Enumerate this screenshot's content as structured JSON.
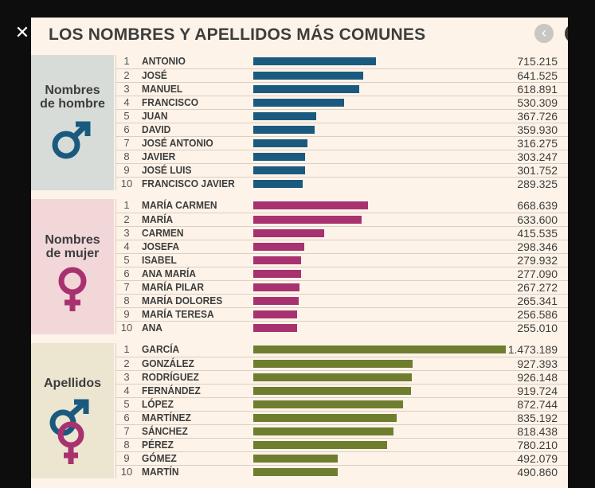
{
  "title": "LOS NOMBRES Y APELLIDOS MÁS COMUNES",
  "colors": {
    "men": "#1a5a7f",
    "women": "#a83270",
    "surnames": "#6f7e2e",
    "men_bg": "#d8dcd9",
    "women_bg": "#f2d7d9",
    "surnames_bg": "#ece6d0"
  },
  "icons": {
    "close": "close-icon",
    "prev": "chevron-left-icon",
    "next": "chevron-right-icon"
  },
  "sections": [
    {
      "key": "men",
      "label": "Nombres de hombre",
      "label_lines": [
        "Nombres",
        "de hombre"
      ],
      "icon": "male-symbol-icon",
      "rows": [
        {
          "rank": "1",
          "name": "ANTONIO",
          "value": "715.215",
          "num": 715215
        },
        {
          "rank": "2",
          "name": "JOSÉ",
          "value": "641.525",
          "num": 641525
        },
        {
          "rank": "3",
          "name": "MANUEL",
          "value": "618.891",
          "num": 618891
        },
        {
          "rank": "4",
          "name": "FRANCISCO",
          "value": "530.309",
          "num": 530309
        },
        {
          "rank": "5",
          "name": "JUAN",
          "value": "367.726",
          "num": 367726
        },
        {
          "rank": "6",
          "name": "DAVID",
          "value": "359.930",
          "num": 359930
        },
        {
          "rank": "7",
          "name": "JOSÉ ANTONIO",
          "value": "316.275",
          "num": 316275
        },
        {
          "rank": "8",
          "name": "JAVIER",
          "value": "303.247",
          "num": 303247
        },
        {
          "rank": "9",
          "name": "JOSÉ LUIS",
          "value": "301.752",
          "num": 301752
        },
        {
          "rank": "10",
          "name": "FRANCISCO JAVIER",
          "value": "289.325",
          "num": 289325
        }
      ]
    },
    {
      "key": "women",
      "label": "Nombres de mujer",
      "label_lines": [
        "Nombres",
        "de mujer"
      ],
      "icon": "female-symbol-icon",
      "rows": [
        {
          "rank": "1",
          "name": "MARÍA CARMEN",
          "value": "668.639",
          "num": 668639
        },
        {
          "rank": "2",
          "name": "MARÍA",
          "value": "633.600",
          "num": 633600
        },
        {
          "rank": "3",
          "name": "CARMEN",
          "value": "415.535",
          "num": 415535
        },
        {
          "rank": "4",
          "name": "JOSEFA",
          "value": "298.346",
          "num": 298346
        },
        {
          "rank": "5",
          "name": "ISABEL",
          "value": "279.932",
          "num": 279932
        },
        {
          "rank": "6",
          "name": "ANA MARÍA",
          "value": "277.090",
          "num": 277090
        },
        {
          "rank": "7",
          "name": "MARÍA PILAR",
          "value": "267.272",
          "num": 267272
        },
        {
          "rank": "8",
          "name": "MARÍA DOLORES",
          "value": "265.341",
          "num": 265341
        },
        {
          "rank": "9",
          "name": "MARÍA TERESA",
          "value": "256.586",
          "num": 256586
        },
        {
          "rank": "10",
          "name": "ANA",
          "value": "255.010",
          "num": 255010
        }
      ]
    },
    {
      "key": "surnames",
      "label": "Apellidos",
      "label_lines": [
        "Apellidos"
      ],
      "icon": "male-female-symbol-icon",
      "rows": [
        {
          "rank": "1",
          "name": "GARCÍA",
          "value": "1.473.189",
          "num": 1473189
        },
        {
          "rank": "2",
          "name": "GONZÁLEZ",
          "value": "927.393",
          "num": 927393
        },
        {
          "rank": "3",
          "name": "RODRÍGUEZ",
          "value": "926.148",
          "num": 926148
        },
        {
          "rank": "4",
          "name": "FERNÁNDEZ",
          "value": "919.724",
          "num": 919724
        },
        {
          "rank": "5",
          "name": "LÓPEZ",
          "value": "872.744",
          "num": 872744
        },
        {
          "rank": "6",
          "name": "MARTÍNEZ",
          "value": "835.192",
          "num": 835192
        },
        {
          "rank": "7",
          "name": "SÁNCHEZ",
          "value": "818.438",
          "num": 818438
        },
        {
          "rank": "8",
          "name": "PÉREZ",
          "value": "780.210",
          "num": 780210
        },
        {
          "rank": "9",
          "name": "GÓMEZ",
          "value": "492.079",
          "num": 492079
        },
        {
          "rank": "10",
          "name": "MARTÍN",
          "value": "490.860",
          "num": 490860
        }
      ]
    }
  ]
}
